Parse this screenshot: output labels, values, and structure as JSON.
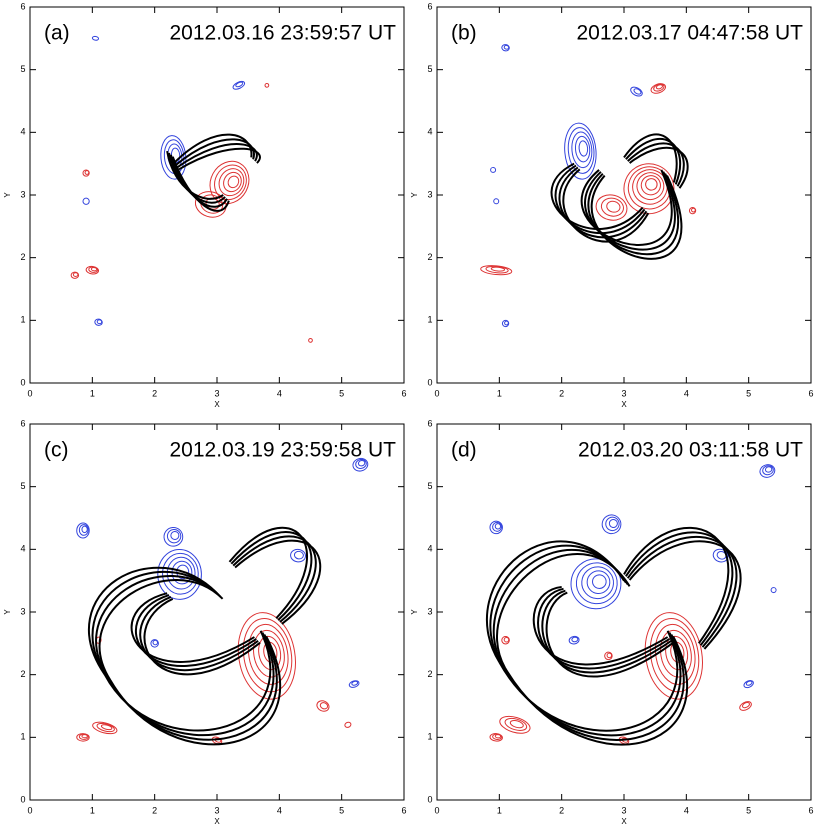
{
  "panels": [
    {
      "label": "(a)",
      "time": "2012.03.16 23:59:57 UT",
      "xlabel": "X",
      "ylabel": "Y",
      "xlim": [
        0,
        6
      ],
      "ylim": [
        0,
        6
      ],
      "xticks": [
        0,
        1,
        2,
        3,
        4,
        5,
        6
      ],
      "yticks": [
        0,
        1,
        2,
        3,
        4,
        5,
        6
      ]
    },
    {
      "label": "(b)",
      "time": "2012.03.17 04:47:58 UT",
      "xlabel": "X",
      "ylabel": "Y",
      "xlim": [
        0,
        6
      ],
      "ylim": [
        0,
        6
      ],
      "xticks": [
        0,
        1,
        2,
        3,
        4,
        5,
        6
      ],
      "yticks": [
        0,
        1,
        2,
        3,
        4,
        5,
        6
      ]
    },
    {
      "label": "(c)",
      "time": "2012.03.19 23:59:58 UT",
      "xlabel": "X",
      "ylabel": "Y",
      "xlim": [
        0,
        6
      ],
      "ylim": [
        0,
        6
      ],
      "xticks": [
        0,
        1,
        2,
        3,
        4,
        5,
        6
      ],
      "yticks": [
        0,
        1,
        2,
        3,
        4,
        5,
        6
      ]
    },
    {
      "label": "(d)",
      "time": "2012.03.20 03:11:58 UT",
      "xlabel": "X",
      "ylabel": "Y",
      "xlim": [
        0,
        6
      ],
      "ylim": [
        0,
        6
      ],
      "xticks": [
        0,
        1,
        2,
        3,
        4,
        5,
        6
      ],
      "yticks": [
        0,
        1,
        2,
        3,
        4,
        5,
        6
      ]
    }
  ]
}
